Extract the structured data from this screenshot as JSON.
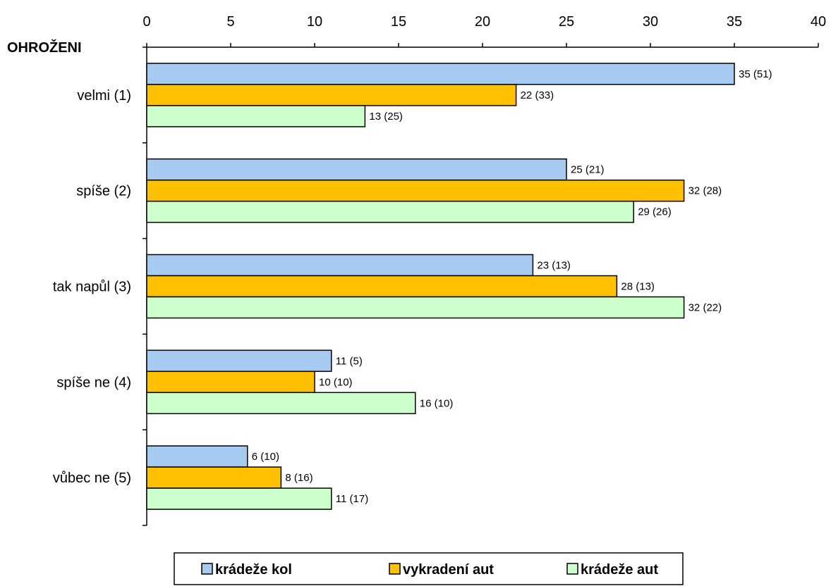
{
  "chart_data": {
    "type": "bar",
    "orientation": "horizontal",
    "ylabel": "OHROŽENI",
    "categories": [
      "velmi (1)",
      "spíše (2)",
      "tak napůl (3)",
      "spíše ne (4)",
      "vůbec ne (5)"
    ],
    "xlim": [
      0,
      40
    ],
    "xticks": [
      0,
      5,
      10,
      15,
      20,
      25,
      30,
      35,
      40
    ],
    "grid": false,
    "legend_position": "bottom",
    "series": [
      {
        "name": "krádeže kol",
        "color": "#a6caf0",
        "values": [
          35,
          25,
          23,
          11,
          6
        ],
        "labels": [
          "35 (51)",
          "25 (21)",
          "23 (13)",
          "11 (5)",
          "6 (10)"
        ]
      },
      {
        "name": "vykradení aut",
        "color": "#ffc000",
        "values": [
          22,
          32,
          28,
          10,
          8
        ],
        "labels": [
          "22 (33)",
          "32 (28)",
          "28 (13)",
          "10 (10)",
          "8 (16)"
        ]
      },
      {
        "name": "krádeže aut",
        "color": "#ccffcc",
        "values": [
          13,
          29,
          32,
          16,
          11
        ],
        "labels": [
          "13 (25)",
          "29 (26)",
          "32 (22)",
          "16 (10)",
          "11 (17)"
        ]
      }
    ]
  }
}
